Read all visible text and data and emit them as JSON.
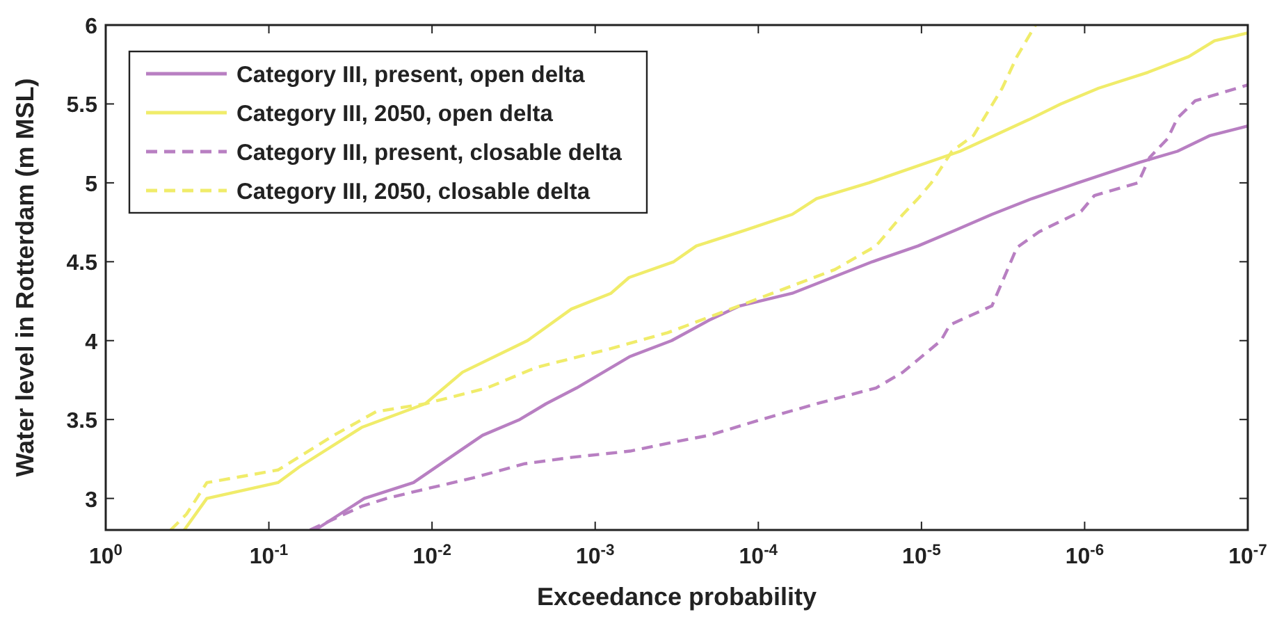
{
  "chart_data": {
    "type": "line",
    "xlabel": "Exceedance probability",
    "ylabel": "Water level in Rotterdam (m MSL)",
    "log": "x",
    "xlim": [
      1,
      1e-07
    ],
    "ylim": [
      2.8,
      6
    ],
    "xticks": [
      {
        "value": 1,
        "label": "10$^{0}$"
      },
      {
        "value": 0.1,
        "label": "10$^{-1}$"
      },
      {
        "value": 0.01,
        "label": "10$^{-2}$"
      },
      {
        "value": 0.001,
        "label": "10$^{-3}$"
      },
      {
        "value": 0.0001,
        "label": "10$^{-4}$"
      },
      {
        "value": 1e-05,
        "label": "10$^{-5}$"
      },
      {
        "value": 1e-06,
        "label": "10$^{-6}$"
      },
      {
        "value": 1e-07,
        "label": "10$^{-7}$"
      }
    ],
    "yticks": [
      3,
      3.5,
      4,
      4.5,
      5,
      5.5,
      6
    ],
    "grid": false,
    "legend": "top left",
    "series": [
      {
        "name": "Category III, present, open delta",
        "color": "#b87fc2",
        "line_style": "solid",
        "x": [
          0.052,
          0.026,
          0.013,
          0.0068,
          0.0049,
          0.0029,
          0.002,
          0.0013,
          0.00061,
          0.00034,
          0.0002,
          0.00013,
          6.2e-05,
          2e-05,
          1.05e-05,
          6.2e-06,
          3.7e-06,
          2.1e-06,
          1.1e-06,
          4.6e-07,
          2.7e-07,
          1.7e-07,
          1e-07
        ],
        "values": [
          2.8,
          3.0,
          3.1,
          3.3,
          3.4,
          3.5,
          3.6,
          3.7,
          3.9,
          4.0,
          4.13,
          4.22,
          4.3,
          4.5,
          4.6,
          4.7,
          4.8,
          4.9,
          5.0,
          5.13,
          5.2,
          5.3,
          5.36
        ]
      },
      {
        "name": "Category III, 2050, open delta",
        "color": "#f0ec6a",
        "line_style": "solid",
        "x": [
          0.33,
          0.24,
          0.088,
          0.065,
          0.027,
          0.011,
          0.0065,
          0.0026,
          0.0014,
          0.0008,
          0.00062,
          0.00033,
          0.00024,
          0.00012,
          6.2e-05,
          4.4e-05,
          2.1e-05,
          5.8e-06,
          2.2e-06,
          1.4e-06,
          8.2e-07,
          4.1e-07,
          2.3e-07,
          1.6e-07,
          1e-07
        ],
        "values": [
          2.8,
          3.0,
          3.1,
          3.2,
          3.45,
          3.6,
          3.8,
          4.0,
          4.2,
          4.3,
          4.4,
          4.5,
          4.6,
          4.7,
          4.8,
          4.9,
          5.0,
          5.2,
          5.4,
          5.5,
          5.6,
          5.7,
          5.8,
          5.9,
          5.95
        ]
      },
      {
        "name": "Category III, present, closable delta",
        "color": "#b87fc2",
        "line_style": "dashed",
        "x": [
          0.056,
          0.027,
          0.019,
          0.012,
          0.0056,
          0.0027,
          0.0014,
          0.00061,
          0.00032,
          0.0002,
          9.6e-05,
          4.4e-05,
          1.9e-05,
          1.3e-05,
          7.6e-06,
          6.7e-06,
          3.7e-06,
          2.6e-06,
          1.9e-06,
          1.05e-06,
          8.7e-07,
          4.7e-07,
          4e-07,
          3.1e-07,
          2.7e-07,
          2.1e-07,
          1e-07
        ],
        "values": [
          2.8,
          2.95,
          3.0,
          3.05,
          3.13,
          3.22,
          3.26,
          3.3,
          3.36,
          3.4,
          3.5,
          3.6,
          3.7,
          3.8,
          4.0,
          4.1,
          4.22,
          4.59,
          4.69,
          4.82,
          4.92,
          5.0,
          5.16,
          5.28,
          5.41,
          5.52,
          5.62
        ]
      },
      {
        "name": "Category III, 2050, closable delta",
        "color": "#f0ec6a",
        "line_style": "dashed",
        "x": [
          0.4,
          0.32,
          0.24,
          0.088,
          0.04,
          0.022,
          0.011,
          0.0046,
          0.0023,
          0.0008,
          0.00036,
          0.00011,
          3.4e-05,
          1.9e-05,
          1.3e-05,
          1.05e-05,
          8.7e-06,
          6.5e-06,
          4.8e-06,
          3.2e-06,
          2.6e-06,
          2e-06
        ],
        "values": [
          2.8,
          2.9,
          3.1,
          3.18,
          3.4,
          3.55,
          3.6,
          3.7,
          3.83,
          3.95,
          4.05,
          4.25,
          4.45,
          4.6,
          4.8,
          4.9,
          5.0,
          5.2,
          5.3,
          5.6,
          5.8,
          6.0
        ]
      }
    ]
  }
}
